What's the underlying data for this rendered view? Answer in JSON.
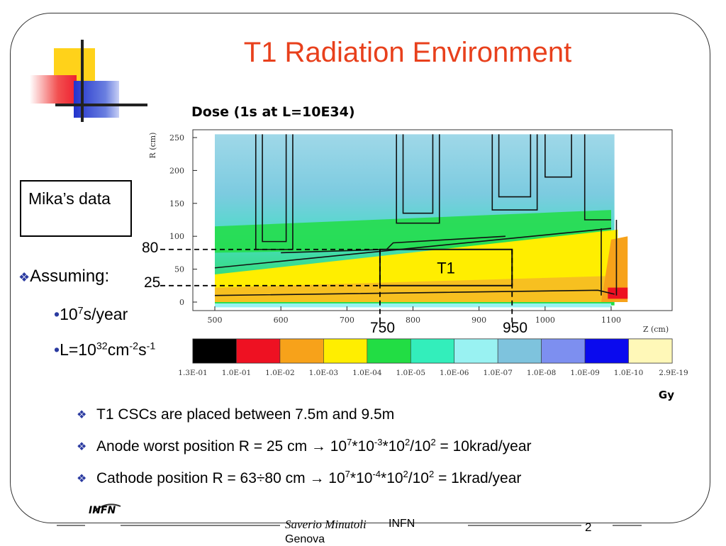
{
  "slide": {
    "title": "T1 Radiation Environment",
    "chart_title": "Dose (1s at L=10E34)",
    "mika_box": "Mika’s data",
    "assuming": "Assuming:",
    "bullet_year": {
      "base": "10",
      "sup": "7",
      "rest": "s/year"
    },
    "bullet_lumi": {
      "t1": "L=10",
      "s1": "32",
      "t2": "cm",
      "s2": "-2",
      "t3": "s",
      "s3": "-1"
    },
    "annotations": {
      "r80": "80",
      "r25": "25",
      "z750": "750",
      "z950": "950",
      "region": "T1"
    },
    "points": [
      {
        "text": "T1 CSCs are placed between 7.5m and 9.5m"
      },
      {
        "parts": [
          "Anode worst position R = 25 cm → 10",
          "7",
          "*10",
          "-3",
          "*10",
          "2",
          "/10",
          "2",
          " = 10krad/year"
        ]
      },
      {
        "parts": [
          "Cathode position R = 63÷80 cm → 10",
          "7",
          "*10",
          "-4",
          "*10",
          "2",
          "/10",
          "2",
          " = 1krad/year"
        ]
      }
    ],
    "footer": {
      "author": "Saverio Minutoli",
      "institute": "INFN",
      "city": "Genova",
      "page": "2",
      "logo": "INFN"
    }
  },
  "chart_data": {
    "type": "heatmap",
    "title": "Dose (1s at L=10E34)",
    "xlabel": "Z (cm)",
    "ylabel": "R (cm)",
    "xlim": [
      460,
      1180
    ],
    "ylim": [
      -10,
      260
    ],
    "x_ticks": [
      "500",
      "600",
      "700",
      "800",
      "900",
      "1000",
      "1100"
    ],
    "y_ticks": [
      "0",
      "50",
      "100",
      "150",
      "200",
      "250"
    ],
    "colorbar": {
      "unit": "Gy",
      "labels": [
        "1.3E-01",
        "1.0E-01",
        "1.0E-02",
        "1.0E-03",
        "1.0E-04",
        "1.0E-05",
        "1.0E-06",
        "1.0E-07",
        "1.0E-08",
        "1.0E-09",
        "1.0E-10",
        "2.9E-19"
      ],
      "colors": [
        "#000000",
        "#ee1122",
        "#f7a21a",
        "#ffee00",
        "#22dd44",
        "#33eebb",
        "#99f2f2",
        "#7ec3dd",
        "#7d8ff0",
        "#0a0aee",
        "#fff8b8"
      ]
    },
    "t1_region": {
      "z": [
        750,
        950
      ],
      "r": [
        25,
        80
      ],
      "label": "T1"
    },
    "marked_z": [
      750,
      950
    ],
    "marked_r": [
      80,
      25
    ]
  }
}
